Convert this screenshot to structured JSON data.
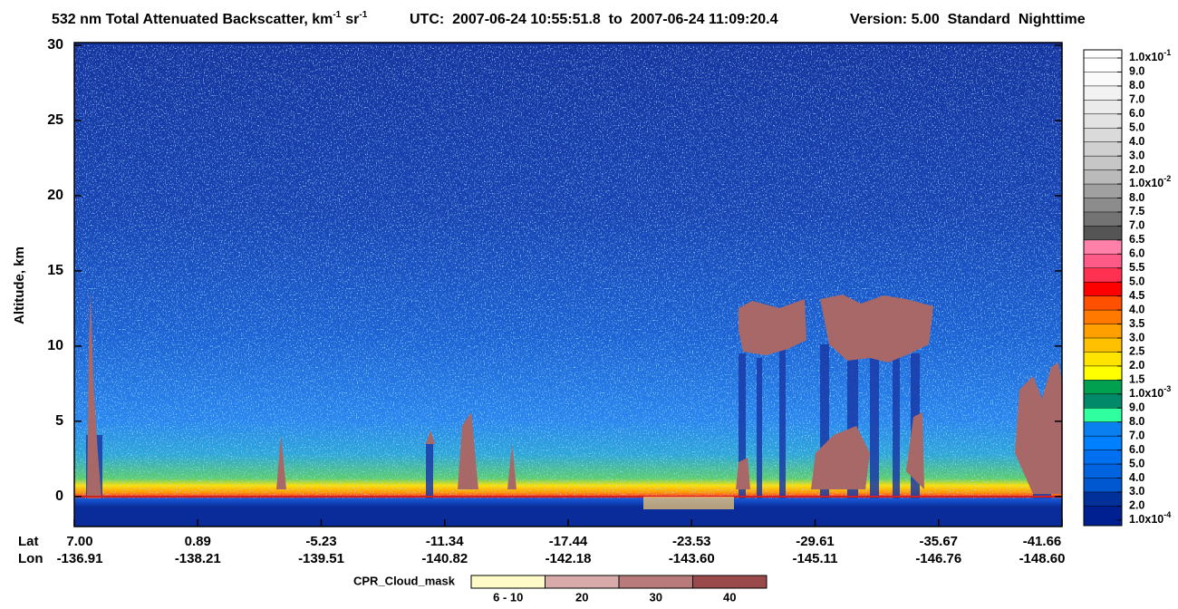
{
  "chart_data": {
    "type": "heatmap",
    "title": {
      "text": "532 nm Total Attenuated Backscatter, km",
      "exponent": "-1",
      "unit2": "sr",
      "unit2_exponent": "-1"
    },
    "utc": "UTC:  2007-06-24 10:55:51.8  to  2007-06-24 11:09:20.4",
    "version": "Version: 5.00  Standard  Nighttime",
    "ylabel": "Altitude, km",
    "ylim": [
      -2,
      30
    ],
    "yticks": [
      0,
      5,
      10,
      15,
      20,
      25,
      30
    ],
    "lat_title": "Lat",
    "lon_title": "Lon",
    "lat_labels": [
      "7.00",
      "0.89",
      "-5.23",
      "-11.34",
      "-17.44",
      "-23.53",
      "-29.61",
      "-35.67",
      "-41.66"
    ],
    "lon_labels": [
      "-136.91",
      "-138.21",
      "-139.51",
      "-140.82",
      "-142.18",
      "-143.60",
      "-145.11",
      "-146.76",
      "-148.60"
    ],
    "colorbar": {
      "labels": [
        {
          "text": "1.0x10",
          "sup": "-1"
        },
        "9.0",
        "8.0",
        "7.0",
        "6.0",
        "5.0",
        "4.0",
        "3.0",
        "2.0",
        {
          "text": "1.0x10",
          "sup": "-2"
        },
        "8.0",
        "7.5",
        "7.0",
        "6.5",
        "6.0",
        "5.5",
        "5.0",
        "4.5",
        "4.0",
        "3.5",
        "3.0",
        "2.5",
        "2.0",
        "1.5",
        {
          "text": "1.0x10",
          "sup": "-3"
        },
        "9.0",
        "8.0",
        "7.0",
        "6.0",
        "5.0",
        "4.0",
        "3.0",
        "2.0",
        {
          "text": "1.0x10",
          "sup": "-4"
        }
      ],
      "colors": [
        "#ffffff",
        "#fafafa",
        "#f2f2f2",
        "#ebebeb",
        "#e3e3e3",
        "#dadada",
        "#d0d0d0",
        "#c6c6c6",
        "#bababa",
        "#a0a0a0",
        "#8c8c8c",
        "#737373",
        "#555555",
        "#ff80a8",
        "#ff5a88",
        "#ff3050",
        "#ff0000",
        "#ff5000",
        "#ff7800",
        "#ffa000",
        "#ffc000",
        "#ffe400",
        "#ffff00",
        "#00a050",
        "#008a6a",
        "#30ffa0",
        "#0a7ff0",
        "#0080ff",
        "#0070f0",
        "#0064e0",
        "#0058d0",
        "#00309a",
        "#001f90"
      ]
    },
    "cloud_mask": {
      "title": "CPR_Cloud_mask",
      "labels": [
        "6 - 10",
        "20",
        "30",
        "40"
      ],
      "colors": [
        "#fffbc8",
        "#d9aaaa",
        "#b87a7a",
        "#9a4a4a"
      ]
    }
  }
}
